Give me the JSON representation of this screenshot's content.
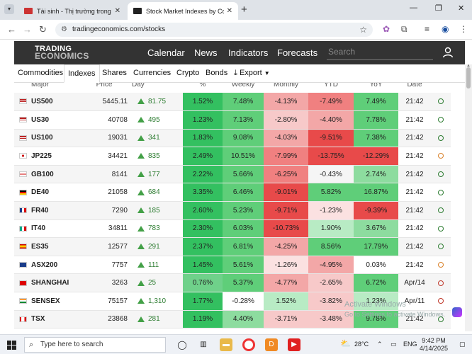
{
  "browser": {
    "tabs": [
      {
        "title": "Tài sinh - Thị trường trong nước",
        "active": false
      },
      {
        "title": "Stock Market Indexes by Count",
        "active": true
      }
    ],
    "url": "tradingeconomics.com/stocks"
  },
  "site": {
    "logo_line1": "TRADING",
    "logo_line2": "ECONOMICS",
    "nav": [
      "Calendar",
      "News",
      "Indicators",
      "Forecasts"
    ],
    "search_placeholder": "Search",
    "subnav": [
      "Commodities",
      "Indexes",
      "Shares",
      "Currencies",
      "Crypto",
      "Bonds",
      "Export"
    ],
    "active_subnav": "Indexes"
  },
  "table": {
    "headers": [
      "",
      "Major",
      "Price",
      "Day",
      "%",
      "Weekly",
      "Monthly",
      "YTD",
      "YoY",
      "Date",
      ""
    ],
    "rows": [
      {
        "flag": "us",
        "symbol": "US500",
        "price": "5445.11",
        "day": "81.75",
        "pct": "1.52%",
        "weekly": "7.48%",
        "monthly": "-4.13%",
        "ytd": "-7.49%",
        "yoy": "7.49%",
        "date": "21:42",
        "clock": "green"
      },
      {
        "flag": "us",
        "symbol": "US30",
        "price": "40708",
        "day": "495",
        "pct": "1.23%",
        "weekly": "7.13%",
        "monthly": "-2.80%",
        "ytd": "-4.40%",
        "yoy": "7.78%",
        "date": "21:42",
        "clock": "green"
      },
      {
        "flag": "us",
        "symbol": "US100",
        "price": "19031",
        "day": "341",
        "pct": "1.83%",
        "weekly": "9.08%",
        "monthly": "-4.03%",
        "ytd": "-9.51%",
        "yoy": "7.38%",
        "date": "21:42",
        "clock": "green"
      },
      {
        "flag": "jp",
        "symbol": "JP225",
        "price": "34421",
        "day": "835",
        "pct": "2.49%",
        "weekly": "10.51%",
        "monthly": "-7.99%",
        "ytd": "-13.75%",
        "yoy": "-12.29%",
        "date": "21:42",
        "clock": "orange"
      },
      {
        "flag": "gb",
        "symbol": "GB100",
        "price": "8141",
        "day": "177",
        "pct": "2.22%",
        "weekly": "5.66%",
        "monthly": "-6.25%",
        "ytd": "-0.43%",
        "yoy": "2.74%",
        "date": "21:42",
        "clock": "green"
      },
      {
        "flag": "de",
        "symbol": "DE40",
        "price": "21058",
        "day": "684",
        "pct": "3.35%",
        "weekly": "6.46%",
        "monthly": "-9.01%",
        "ytd": "5.82%",
        "yoy": "16.87%",
        "date": "21:42",
        "clock": "green"
      },
      {
        "flag": "fr",
        "symbol": "FR40",
        "price": "7290",
        "day": "185",
        "pct": "2.60%",
        "weekly": "5.23%",
        "monthly": "-9.71%",
        "ytd": "-1.23%",
        "yoy": "-9.39%",
        "date": "21:42",
        "clock": "green"
      },
      {
        "flag": "it",
        "symbol": "IT40",
        "price": "34811",
        "day": "783",
        "pct": "2.30%",
        "weekly": "6.03%",
        "monthly": "-10.73%",
        "ytd": "1.90%",
        "yoy": "3.67%",
        "date": "21:42",
        "clock": "green"
      },
      {
        "flag": "es",
        "symbol": "ES35",
        "price": "12577",
        "day": "291",
        "pct": "2.37%",
        "weekly": "6.81%",
        "monthly": "-4.25%",
        "ytd": "8.56%",
        "yoy": "17.79%",
        "date": "21:42",
        "clock": "green"
      },
      {
        "flag": "au",
        "symbol": "ASX200",
        "price": "7757",
        "day": "111",
        "pct": "1.45%",
        "weekly": "5.61%",
        "monthly": "-1.26%",
        "ytd": "-4.95%",
        "yoy": "0.03%",
        "date": "21:42",
        "clock": "orange"
      },
      {
        "flag": "cn",
        "symbol": "SHANGHAI",
        "price": "3263",
        "day": "25",
        "pct": "0.76%",
        "weekly": "5.37%",
        "monthly": "-4.77%",
        "ytd": "-2.65%",
        "yoy": "6.72%",
        "date": "Apr/14",
        "clock": "red"
      },
      {
        "flag": "in",
        "symbol": "SENSEX",
        "price": "75157",
        "day": "1,310",
        "pct": "1.77%",
        "weekly": "-0.28%",
        "monthly": "1.52%",
        "ytd": "-3.82%",
        "yoy": "1.23%",
        "date": "Apr/11",
        "clock": "red"
      },
      {
        "flag": "ca",
        "symbol": "TSX",
        "price": "23868",
        "day": "281",
        "pct": "1.19%",
        "weekly": "4.40%",
        "monthly": "-3.71%",
        "ytd": "-3.48%",
        "yoy": "9.78%",
        "date": "21:42",
        "clock": "green"
      }
    ]
  },
  "watermark": {
    "line1": "Activate Windows",
    "line2": "Go to Settings to activate Windows."
  },
  "taskbar": {
    "search_placeholder": "Type here to search",
    "temperature": "28°C",
    "language": "ENG",
    "time": "9:42 PM",
    "date": "4/14/2025"
  }
}
